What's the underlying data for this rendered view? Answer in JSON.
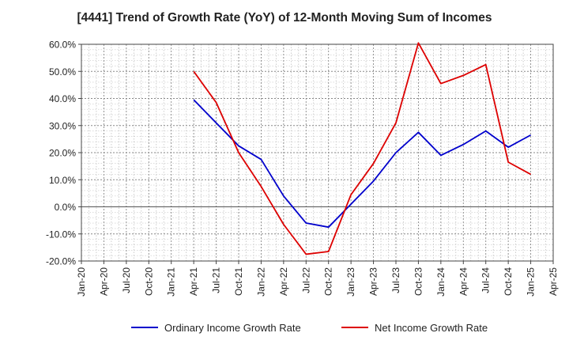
{
  "chart_data": {
    "type": "line",
    "title": "[4441]  Trend of Growth Rate (YoY) of 12-Month Moving Sum of Incomes",
    "xlabel": "",
    "ylabel": "",
    "x_ticks": [
      "Jan-20",
      "Apr-20",
      "Jul-20",
      "Oct-20",
      "Jan-21",
      "Apr-21",
      "Jul-21",
      "Oct-21",
      "Jan-22",
      "Apr-22",
      "Jul-22",
      "Oct-22",
      "Jan-23",
      "Apr-23",
      "Jul-23",
      "Oct-23",
      "Jan-24",
      "Apr-24",
      "Jul-24",
      "Oct-24",
      "Jan-25",
      "Apr-25"
    ],
    "y_ticks": [
      "60.0%",
      "50.0%",
      "40.0%",
      "30.0%",
      "20.0%",
      "10.0%",
      "0.0%",
      "-10.0%",
      "-20.0%"
    ],
    "ylim": [
      -20,
      60
    ],
    "grid": true,
    "legend_position": "bottom",
    "series": [
      {
        "name": "Ordinary Income Growth Rate",
        "color": "#0000cc",
        "points": [
          [
            "Apr-21",
            39.5
          ],
          [
            "Jul-21",
            31.0
          ],
          [
            "Oct-21",
            22.5
          ],
          [
            "Jan-22",
            17.5
          ],
          [
            "Apr-22",
            4.0
          ],
          [
            "Jul-22",
            -6.0
          ],
          [
            "Oct-22",
            -7.5
          ],
          [
            "Jan-23",
            1.0
          ],
          [
            "Apr-23",
            9.5
          ],
          [
            "Jul-23",
            20.0
          ],
          [
            "Oct-23",
            27.5
          ],
          [
            "Jan-24",
            19.0
          ],
          [
            "Apr-24",
            23.0
          ],
          [
            "Jul-24",
            28.0
          ],
          [
            "Oct-24",
            22.0
          ],
          [
            "Jan-25",
            26.5
          ]
        ]
      },
      {
        "name": "Net Income Growth Rate",
        "color": "#dd0000",
        "points": [
          [
            "Apr-21",
            50.0
          ],
          [
            "Jul-21",
            38.5
          ],
          [
            "Oct-21",
            20.0
          ],
          [
            "Jan-22",
            7.5
          ],
          [
            "Apr-22",
            -6.5
          ],
          [
            "Jul-22",
            -17.5
          ],
          [
            "Oct-22",
            -16.5
          ],
          [
            "Jan-23",
            4.5
          ],
          [
            "Apr-23",
            16.0
          ],
          [
            "Jul-23",
            31.0
          ],
          [
            "Oct-23",
            60.5
          ],
          [
            "Jan-24",
            45.5
          ],
          [
            "Apr-24",
            48.5
          ],
          [
            "Jul-24",
            52.5
          ],
          [
            "Oct-24",
            16.5
          ],
          [
            "Jan-25",
            12.0
          ]
        ]
      }
    ]
  }
}
